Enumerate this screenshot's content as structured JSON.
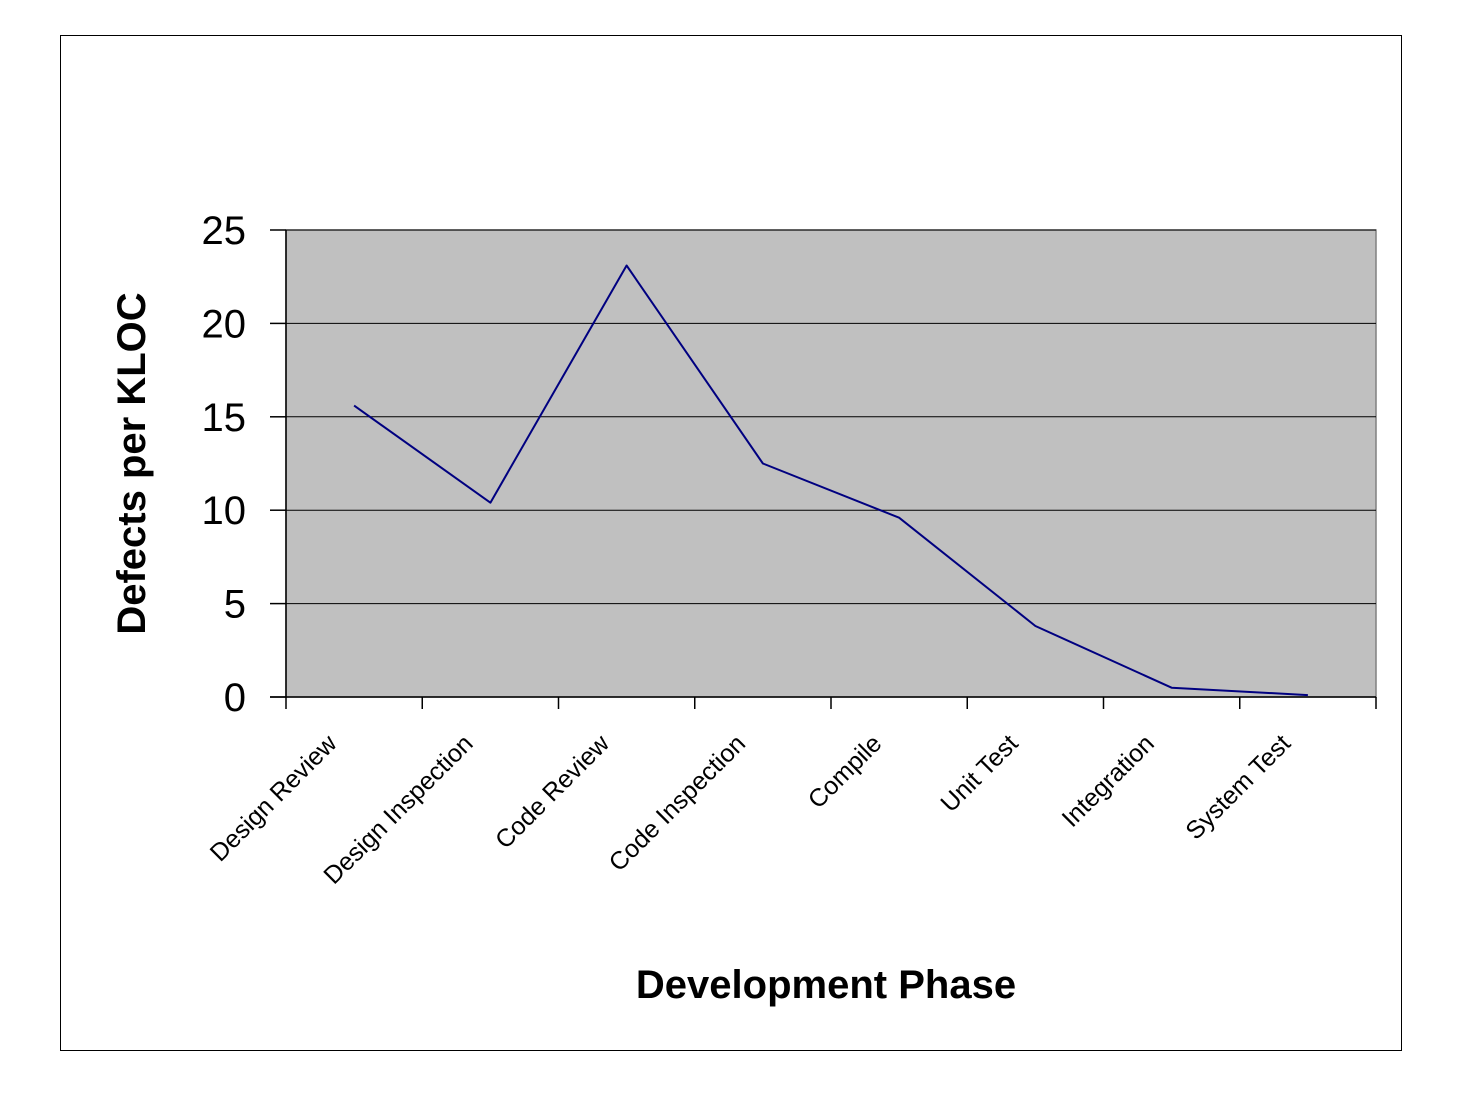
{
  "chart_data": {
    "type": "line",
    "title": "",
    "xlabel": "Development Phase",
    "ylabel": "Defects per KLOC",
    "categories": [
      "Design Review",
      "Design Inspection",
      "Code Review",
      "Code Inspection",
      "Compile",
      "Unit Test",
      "Integration",
      "System Test"
    ],
    "series": [
      {
        "values": [
          15.6,
          10.4,
          23.1,
          12.5,
          9.6,
          3.8,
          0.5,
          0.1
        ]
      }
    ],
    "ylim": [
      0,
      25
    ],
    "yticks": [
      "0",
      "5",
      "10",
      "15",
      "20",
      "25"
    ],
    "grid": "horizontal",
    "legend": "none",
    "colors": {
      "plot_background": "#c0c0c0",
      "line": "#000080",
      "gridline": "#000000"
    }
  }
}
